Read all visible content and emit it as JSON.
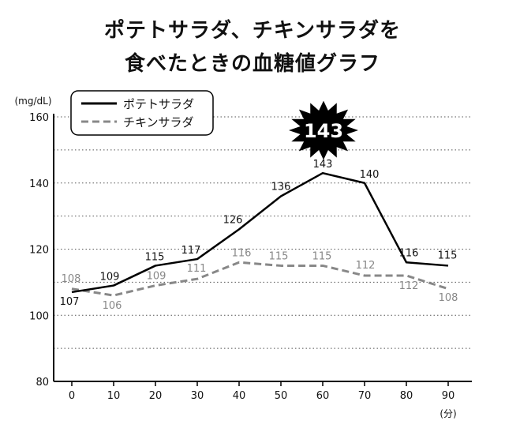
{
  "header": {
    "title_line1": "ポテトサラダ、チキンサラダを",
    "title_line2": "食べたときの血糖値グラフ"
  },
  "chart_data": {
    "type": "line",
    "x": [
      0,
      10,
      20,
      30,
      40,
      50,
      60,
      70,
      80,
      90
    ],
    "series": [
      {
        "name": "ポテトサラダ",
        "values": [
          107,
          109,
          115,
          117,
          126,
          136,
          143,
          140,
          116,
          115
        ],
        "color": "#000000",
        "style": "solid"
      },
      {
        "name": "チキンサラダ",
        "values": [
          108,
          106,
          109,
          111,
          116,
          115,
          115,
          112,
          112,
          108
        ],
        "color": "#888888",
        "style": "dashed"
      }
    ],
    "ylim": [
      80,
      160
    ],
    "xlim": [
      0,
      90
    ],
    "y_ticks": [
      80,
      100,
      120,
      140,
      160
    ],
    "x_ticks": [
      0,
      10,
      20,
      30,
      40,
      50,
      60,
      70,
      80,
      90
    ],
    "y_unit": "(mg/dL)",
    "x_unit": "(分)",
    "grid": "horizontal dotted every 10",
    "legend_placement": "top-left",
    "annotation": "143"
  }
}
